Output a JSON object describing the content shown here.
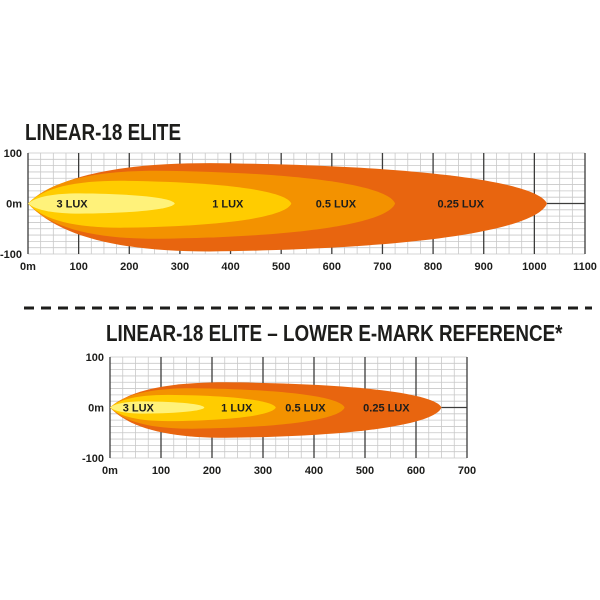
{
  "colors": {
    "c025": "#e8650f",
    "c05": "#f39200",
    "c1": "#ffcc00",
    "c3": "#fff27a",
    "grid_major": "#3c3c3b",
    "grid_minor": "#c8c8c8"
  },
  "chart_data": [
    {
      "type": "area",
      "title": "LINEAR-18 ELITE",
      "x_ticks": [
        "0m",
        "100",
        "200",
        "300",
        "400",
        "500",
        "600",
        "700",
        "800",
        "900",
        "1000",
        "1100"
      ],
      "y_ticks": [
        "100",
        "0m",
        "-100"
      ],
      "xlim": [
        0,
        1100
      ],
      "ylim": [
        -100,
        100
      ],
      "grid": true,
      "contours": [
        {
          "label": "0.25 LUX",
          "reach_m": 1025,
          "half_width_up_m": 80,
          "half_width_down_m": 95,
          "color": "#e8650f"
        },
        {
          "label": "0.5 LUX",
          "reach_m": 725,
          "half_width_up_m": 65,
          "half_width_down_m": 70,
          "color": "#f39200"
        },
        {
          "label": "1 LUX",
          "reach_m": 520,
          "half_width_up_m": 45,
          "half_width_down_m": 48,
          "color": "#ffcc00"
        },
        {
          "label": "3 LUX",
          "reach_m": 290,
          "half_width_up_m": 20,
          "half_width_down_m": 20,
          "color": "#fff27a"
        }
      ]
    },
    {
      "type": "area",
      "title": "LINEAR-18 ELITE – LOWER E-MARK REFERENCE*",
      "x_ticks": [
        "0m",
        "100",
        "200",
        "300",
        "400",
        "500",
        "600",
        "700"
      ],
      "y_ticks": [
        "100",
        "0m",
        "-100"
      ],
      "xlim": [
        0,
        700
      ],
      "ylim": [
        -100,
        100
      ],
      "grid": true,
      "contours": [
        {
          "label": "0.25 LUX",
          "reach_m": 650,
          "half_width_up_m": 50,
          "half_width_down_m": 60,
          "color": "#e8650f"
        },
        {
          "label": "0.5 LUX",
          "reach_m": 460,
          "half_width_up_m": 38,
          "half_width_down_m": 42,
          "color": "#f39200"
        },
        {
          "label": "1 LUX",
          "reach_m": 325,
          "half_width_up_m": 25,
          "half_width_down_m": 27,
          "color": "#ffcc00"
        },
        {
          "label": "3 LUX",
          "reach_m": 185,
          "half_width_up_m": 12,
          "half_width_down_m": 12,
          "color": "#fff27a"
        }
      ]
    }
  ]
}
